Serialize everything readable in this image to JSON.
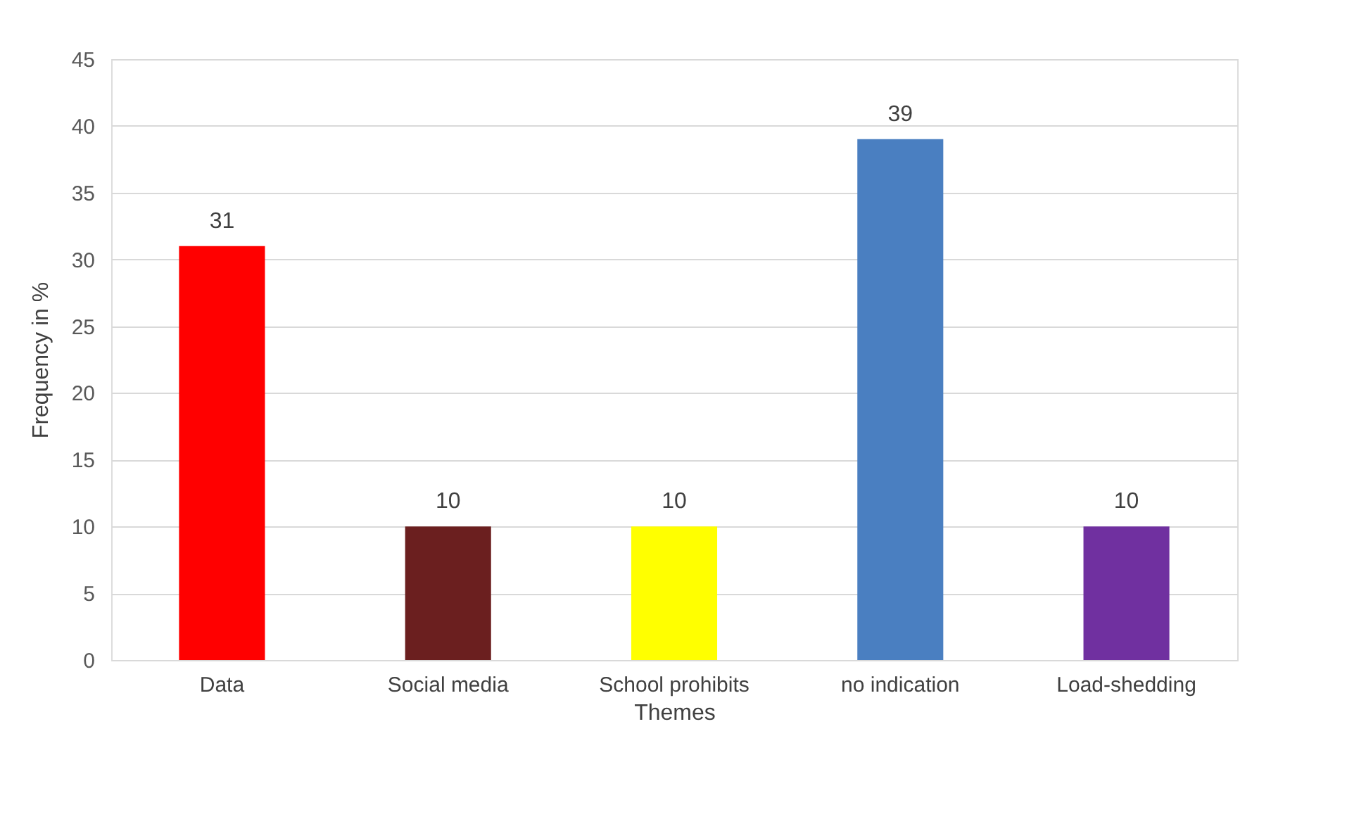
{
  "chart_data": {
    "type": "bar",
    "xlabel": "Themes",
    "ylabel": "Frequency in %",
    "categories": [
      "Data",
      "Social media",
      "School prohibits",
      "no indication",
      "Load-shedding"
    ],
    "values": [
      31,
      10,
      10,
      39,
      10
    ],
    "colors": [
      "#ff0000",
      "#6b1f1f",
      "#ffff00",
      "#4a7fc1",
      "#7030a0"
    ],
    "ylim": [
      0,
      45
    ],
    "yticks": [
      0,
      5,
      10,
      15,
      20,
      25,
      30,
      35,
      40,
      45
    ],
    "grid": "y",
    "data_labels": true
  }
}
